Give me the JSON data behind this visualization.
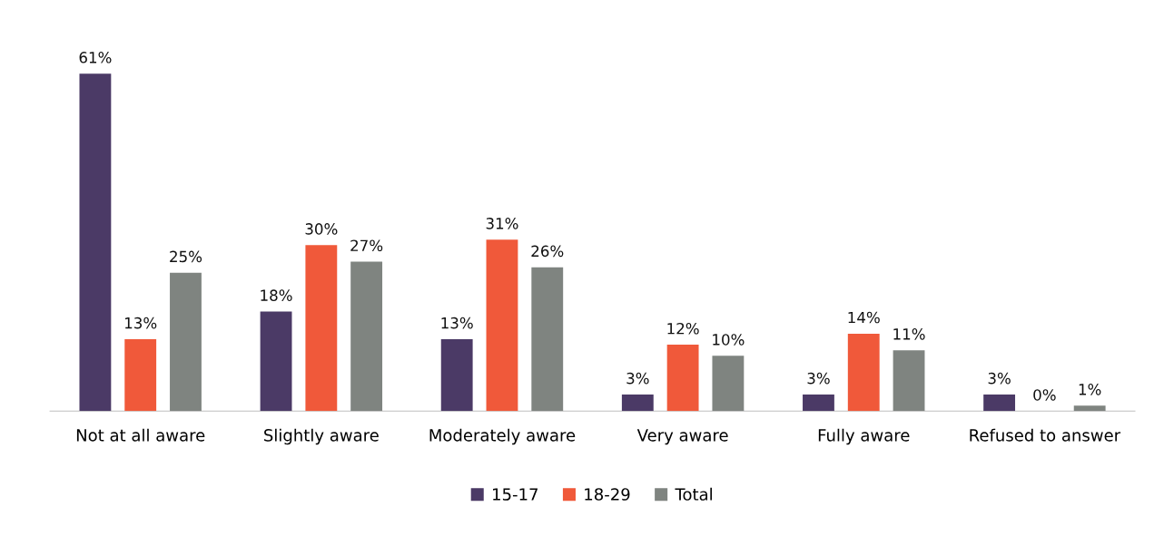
{
  "chart_data": {
    "type": "bar",
    "categories": [
      "Not at all aware",
      "Slightly aware",
      "Moderately aware",
      "Very aware",
      "Fully aware",
      "Refused to answer"
    ],
    "series": [
      {
        "name": "15-17",
        "color": "#4b3a66",
        "values": [
          61,
          18,
          13,
          3,
          3,
          3
        ],
        "value_labels": [
          "61%",
          "18%",
          "13%",
          "3%",
          "3%",
          "3%"
        ]
      },
      {
        "name": "18-29",
        "color": "#f0593a",
        "values": [
          13,
          30,
          31,
          12,
          14,
          0
        ],
        "value_labels": [
          "13%",
          "30%",
          "31%",
          "12%",
          "14%",
          "0%"
        ]
      },
      {
        "name": "Total",
        "color": "#7f8480",
        "values": [
          25,
          27,
          26,
          10,
          11,
          1
        ],
        "value_labels": [
          "25%",
          "27%",
          "26%",
          "10%",
          "11%",
          "1%"
        ]
      }
    ],
    "legend": "bottom"
  }
}
